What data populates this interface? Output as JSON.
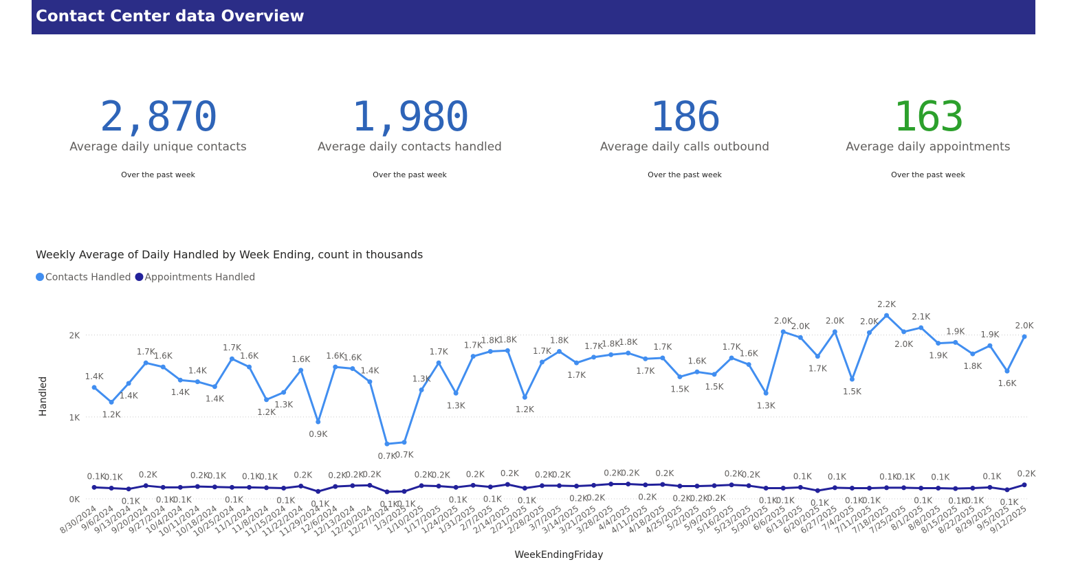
{
  "header": {
    "title": "Contact Center data Overview"
  },
  "kpis": [
    {
      "value": "2,870",
      "label": "Average daily unique contacts",
      "note": "Over the past week",
      "color": "#2e64b8"
    },
    {
      "value": "1,980",
      "label": "Average daily contacts handled",
      "note": "Over the past week",
      "color": "#2e64b8"
    },
    {
      "value": "186",
      "label": "Average daily calls outbound",
      "note": "Over the past week",
      "color": "#2e64b8"
    },
    {
      "value": "163",
      "label": "Average daily appointments",
      "note": "Over the past week",
      "color": "#2ca02c"
    }
  ],
  "chart_data": {
    "type": "line",
    "title": "Weekly Average of Daily Handled by Week Ending, count in thousands",
    "x_label": "WeekEndingFriday",
    "y_label": "Handled",
    "categories": [
      "8/30/2024",
      "9/6/2024",
      "9/13/2024",
      "9/20/2024",
      "9/27/2024",
      "10/4/2024",
      "10/11/2024",
      "10/18/2024",
      "10/25/2024",
      "11/1/2024",
      "11/8/2024",
      "11/15/2024",
      "11/22/2024",
      "11/29/2024",
      "12/6/2024",
      "12/13/2024",
      "12/20/2024",
      "12/27/2024",
      "1/3/2025",
      "1/10/2025",
      "1/17/2025",
      "1/24/2025",
      "1/31/2025",
      "2/7/2025",
      "2/14/2025",
      "2/21/2025",
      "2/28/2025",
      "3/7/2025",
      "3/14/2025",
      "3/21/2025",
      "3/28/2025",
      "4/4/2025",
      "4/11/2025",
      "4/18/2025",
      "4/25/2025",
      "5/2/2025",
      "5/9/2025",
      "5/16/2025",
      "5/23/2025",
      "5/30/2025",
      "6/6/2025",
      "6/13/2025",
      "6/20/2025",
      "6/27/2025",
      "7/4/2025",
      "7/11/2025",
      "7/18/2025",
      "7/25/2025",
      "8/1/2025",
      "8/8/2025",
      "8/15/2025",
      "8/22/2025",
      "8/29/2025",
      "9/5/2025",
      "9/12/2025"
    ],
    "series": [
      {
        "name": "Contacts Handled",
        "color": "#418ef0",
        "values": [
          1360,
          1180,
          1410,
          1660,
          1610,
          1450,
          1430,
          1370,
          1710,
          1610,
          1210,
          1300,
          1570,
          940,
          1610,
          1590,
          1430,
          670,
          690,
          1330,
          1660,
          1290,
          1740,
          1800,
          1810,
          1240,
          1670,
          1800,
          1660,
          1730,
          1760,
          1780,
          1710,
          1720,
          1490,
          1550,
          1520,
          1720,
          1640,
          1290,
          2040,
          1970,
          1740,
          2040,
          1460,
          2030,
          2240,
          2040,
          2090,
          1900,
          1910,
          1770,
          1870,
          1560,
          1980
        ],
        "value_labels": [
          "1.4K",
          "1.2K",
          "1.4K",
          "1.7K",
          "1.6K",
          "1.4K",
          "1.4K",
          "1.4K",
          "1.7K",
          "1.6K",
          "1.2K",
          "1.3K",
          "1.6K",
          "0.9K",
          "1.6K",
          "1.6K",
          "1.4K",
          "0.7K",
          "0.7K",
          "1.3K",
          "1.7K",
          "1.3K",
          "1.7K",
          "1.8K",
          "1.8K",
          "1.2K",
          "1.7K",
          "1.8K",
          "1.7K",
          "1.7K",
          "1.8K",
          "1.8K",
          "1.7K",
          "1.7K",
          "1.5K",
          "1.6K",
          "1.5K",
          "1.7K",
          "1.6K",
          "1.3K",
          "2.0K",
          "2.0K",
          "1.7K",
          "2.0K",
          "1.5K",
          "2.0K",
          "2.2K",
          "2.0K",
          "2.1K",
          "1.9K",
          "1.9K",
          "1.8K",
          "1.9K",
          "1.6K",
          "2.0K"
        ]
      },
      {
        "name": "Appointments Handled",
        "color": "#22219a",
        "values": [
          140,
          130,
          120,
          160,
          140,
          140,
          150,
          145,
          140,
          140,
          135,
          130,
          155,
          90,
          150,
          160,
          165,
          85,
          90,
          160,
          155,
          140,
          165,
          145,
          175,
          130,
          160,
          160,
          155,
          165,
          180,
          180,
          170,
          175,
          155,
          155,
          160,
          170,
          160,
          130,
          130,
          140,
          100,
          135,
          130,
          130,
          135,
          135,
          130,
          130,
          125,
          130,
          140,
          110,
          170
        ],
        "value_labels": [
          "0.1K",
          "0.1K",
          "0.1K",
          "0.2K",
          "0.1K",
          "0.1K",
          "0.2K",
          "0.1K",
          "0.1K",
          "0.1K",
          "0.1K",
          "0.1K",
          "0.2K",
          "0.1K",
          "0.2K",
          "0.2K",
          "0.2K",
          "0.1K",
          "0.1K",
          "0.2K",
          "0.2K",
          "0.1K",
          "0.2K",
          "0.1K",
          "0.2K",
          "0.1K",
          "0.2K",
          "0.2K",
          "0.2K",
          "0.2K",
          "0.2K",
          "0.2K",
          "0.2K",
          "0.2K",
          "0.2K",
          "0.2K",
          "0.2K",
          "0.2K",
          "0.2K",
          "0.1K",
          "0.1K",
          "0.1K",
          "0.1K",
          "0.1K",
          "0.1K",
          "0.1K",
          "0.1K",
          "0.1K",
          "0.1K",
          "0.1K",
          "0.1K",
          "0.1K",
          "0.1K",
          "0.1K",
          "0.2K"
        ]
      }
    ],
    "ylim": [
      0,
      2400
    ],
    "yticks": [
      {
        "value": 0,
        "label": "0K"
      },
      {
        "value": 1000,
        "label": "1K"
      },
      {
        "value": 2000,
        "label": "2K"
      }
    ],
    "grid": true,
    "legend": "top-left"
  }
}
